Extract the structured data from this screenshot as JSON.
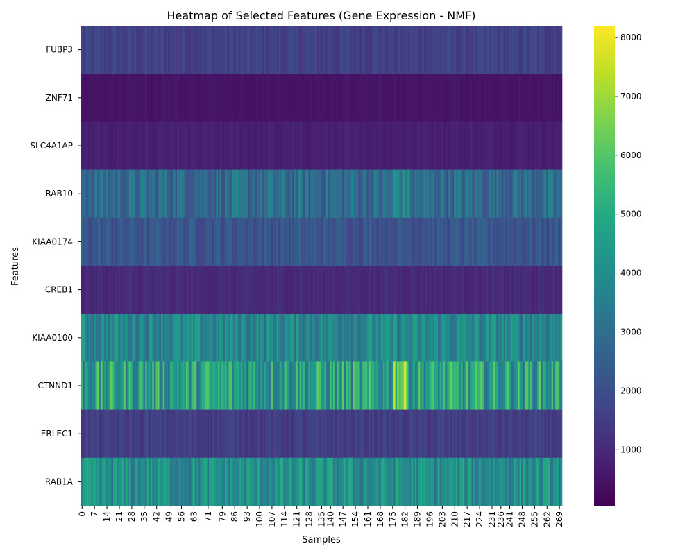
{
  "chart_data": {
    "type": "heatmap",
    "title": "Heatmap of Selected Features (Gene Expression - NMF)",
    "xlabel": "Samples",
    "ylabel": "Features",
    "features": [
      "FUBP3",
      "ZNF71",
      "SLC4A1AP",
      "RAB10",
      "KIAA0174",
      "CREB1",
      "KIAA0100",
      "CTNND1",
      "ERLEC1",
      "RAB1A"
    ],
    "n_samples": 271,
    "x_tick_labels": [
      "0",
      "7",
      "14",
      "21",
      "28",
      "35",
      "42",
      "49",
      "56",
      "63",
      "71",
      "79",
      "86",
      "93",
      "100",
      "107",
      "114",
      "121",
      "128",
      "135",
      "140",
      "147",
      "154",
      "161",
      "168",
      "175",
      "182",
      "189",
      "196",
      "203",
      "210",
      "217",
      "224",
      "231",
      "236",
      "241",
      "248",
      "255",
      "262",
      "269"
    ],
    "colorbar": {
      "vmin": 50,
      "vmax": 8200,
      "ticks": [
        1000,
        2000,
        3000,
        4000,
        5000,
        6000,
        7000,
        8000
      ],
      "colormap": "viridis"
    },
    "row_profiles": [
      {
        "feature": "FUBP3",
        "mean": 1600,
        "spread": 350
      },
      {
        "feature": "ZNF71",
        "mean": 480,
        "spread": 80
      },
      {
        "feature": "SLC4A1AP",
        "mean": 750,
        "spread": 120
      },
      {
        "feature": "RAB10",
        "mean": 2900,
        "spread": 900
      },
      {
        "feature": "KIAA0174",
        "mean": 2200,
        "spread": 500
      },
      {
        "feature": "CREB1",
        "mean": 1000,
        "spread": 200
      },
      {
        "feature": "KIAA0100",
        "mean": 3800,
        "spread": 1000
      },
      {
        "feature": "CTNND1",
        "mean": 4600,
        "spread": 1700
      },
      {
        "feature": "ERLEC1",
        "mean": 1500,
        "spread": 300
      },
      {
        "feature": "RAB1A",
        "mean": 4000,
        "spread": 1100
      }
    ]
  }
}
